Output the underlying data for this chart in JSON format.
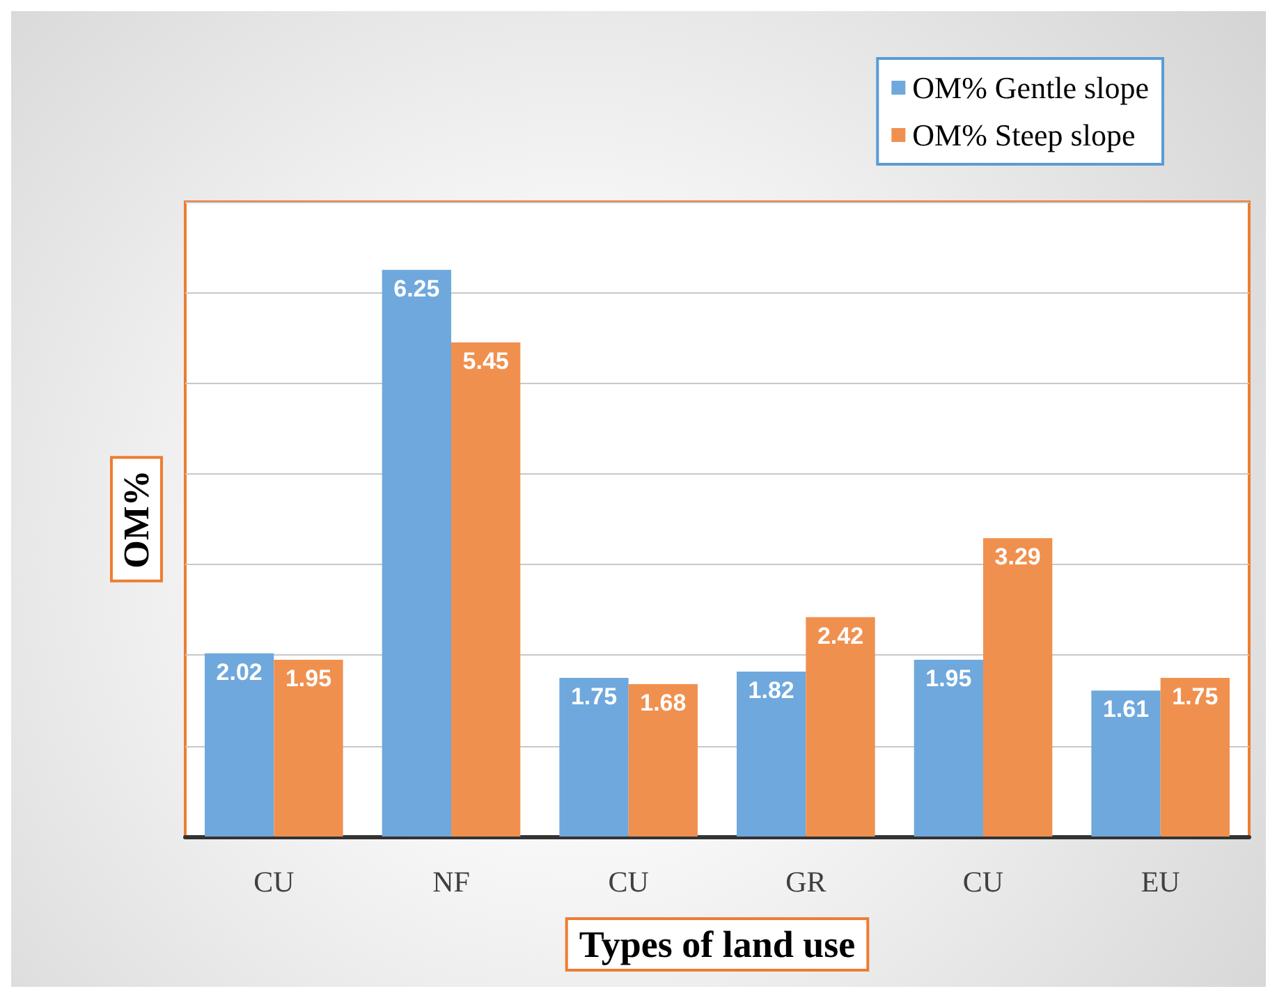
{
  "chart_data": {
    "type": "bar",
    "xlabel": "Types of land use",
    "ylabel": "OM%",
    "categories": [
      "CU",
      "NF",
      "CU",
      "GR",
      "CU",
      "EU"
    ],
    "series": [
      {
        "name": "OM% Gentle slope",
        "color": "#6fa8dc",
        "values": [
          2.02,
          6.25,
          1.75,
          1.82,
          1.95,
          1.61
        ]
      },
      {
        "name": "OM% Steep slope",
        "color": "#f0904f",
        "values": [
          1.95,
          5.45,
          1.68,
          2.42,
          3.29,
          1.75
        ]
      }
    ],
    "ylim": [
      0,
      7
    ],
    "yticks": [
      {
        "value": 0,
        "label": null
      },
      {
        "value": 1,
        "label": null
      },
      {
        "value": 2,
        "label": null
      },
      {
        "value": 3,
        "label": null
      },
      {
        "value": 4,
        "label": null
      },
      {
        "value": 5,
        "label": null
      },
      {
        "value": 6,
        "label": null
      },
      {
        "value": 7,
        "label": null
      }
    ],
    "grid": "y",
    "legend": "top right",
    "tick_labels": "x",
    "data_labels": true
  }
}
